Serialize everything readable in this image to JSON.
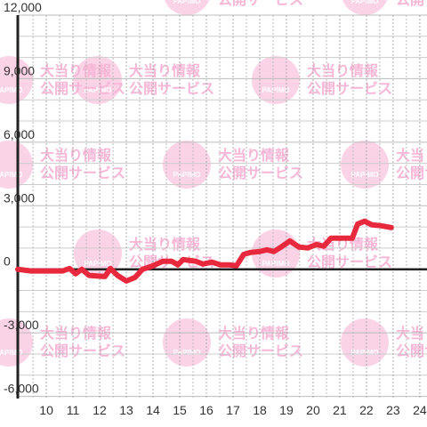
{
  "chart_data": {
    "type": "line",
    "watermark": {
      "brand": "PAPIMO",
      "lines": [
        "大当り情報",
        "公開サービス"
      ]
    },
    "x": [
      8.93,
      9.43,
      10.6,
      10.87,
      11.1,
      11.33,
      11.6,
      12.2,
      12.4,
      12.67,
      13.0,
      13.33,
      13.6,
      13.93,
      14.37,
      14.7,
      14.93,
      15.13,
      15.37,
      15.6,
      15.87,
      16.2,
      16.53,
      16.87,
      17.13,
      17.4,
      17.67,
      18.0,
      18.27,
      18.53,
      18.8,
      19.13,
      19.47,
      19.8,
      20.13,
      20.4,
      20.67,
      21.2,
      21.47,
      21.67,
      21.93,
      22.2,
      22.53,
      22.93
    ],
    "series": [
      {
        "color": "#e8283c",
        "values": [
          0,
          -80,
          -80,
          40,
          -210,
          0,
          -290,
          -340,
          40,
          -290,
          -550,
          -380,
          0,
          130,
          380,
          380,
          210,
          460,
          420,
          380,
          250,
          340,
          210,
          210,
          170,
          710,
          800,
          840,
          920,
          840,
          1050,
          1340,
          1050,
          1010,
          1170,
          1090,
          1470,
          1470,
          1470,
          2140,
          2270,
          2100,
          2060,
          1970
        ]
      }
    ],
    "xlim": [
      8.93,
      24.27
    ],
    "ylim": [
      -6100,
      12000
    ],
    "xticks": [
      10,
      11,
      12,
      13,
      14,
      15,
      16,
      17,
      18,
      19,
      20,
      21,
      22,
      23,
      24
    ],
    "x_minor_ticks": [
      9.5,
      10.5,
      11.5,
      12.5,
      13.5,
      14.5,
      15.5,
      16.5,
      17.5,
      18.5,
      19.5,
      20.5,
      21.5,
      22.5,
      23.5
    ],
    "yticks": [
      {
        "value": -6000,
        "label": "-6,000"
      },
      {
        "value": -3000,
        "label": "-3,000"
      },
      0,
      {
        "value": 3000,
        "label": "3,000"
      },
      {
        "value": 6000,
        "label": "6,000"
      },
      {
        "value": 9000,
        "label": "9,000"
      },
      {
        "value": 12000,
        "label": "12,000"
      }
    ],
    "y_minor_ticks": [
      -5000,
      -4000,
      -2000,
      -1000,
      1000,
      2000,
      4000,
      5000,
      7000,
      8000,
      10000,
      11000
    ],
    "grid": true
  }
}
